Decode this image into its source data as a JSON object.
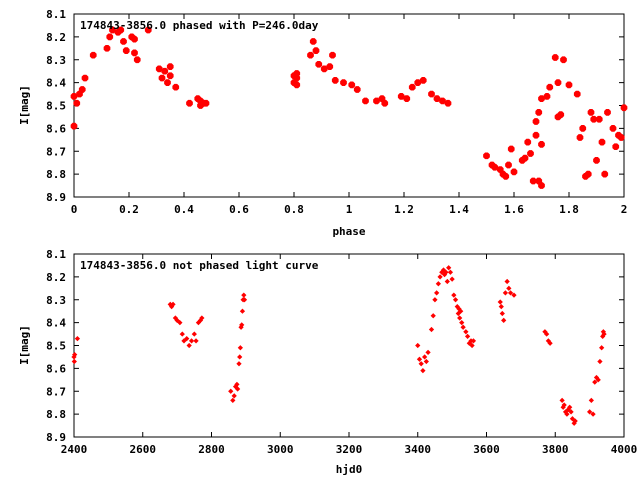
{
  "chart_data": [
    {
      "type": "scatter",
      "title": "174843-3856.0 phased with P=246.0day",
      "xlabel": "phase",
      "ylabel": "I[mag]",
      "xlim": [
        0,
        2
      ],
      "ylim": [
        8.9,
        8.1
      ],
      "y_inverted": true,
      "grid": false,
      "marker_color": "#ff0000",
      "marker_shape": "star",
      "xticks": [
        "0",
        "0.2",
        "0.4",
        "0.6",
        "0.8",
        "1",
        "1.2",
        "1.4",
        "1.6",
        "1.8",
        "2"
      ],
      "yticks": [
        "8.1",
        "8.2",
        "8.3",
        "8.4",
        "8.5",
        "8.6",
        "8.7",
        "8.8",
        "8.9"
      ],
      "series": [
        {
          "points": [
            [
              0.0,
              8.46
            ],
            [
              0.0,
              8.59
            ],
            [
              0.01,
              8.49
            ],
            [
              0.02,
              8.45
            ],
            [
              0.03,
              8.43
            ],
            [
              0.04,
              8.38
            ],
            [
              0.07,
              8.28
            ],
            [
              0.12,
              8.25
            ],
            [
              0.13,
              8.2
            ],
            [
              0.14,
              8.17
            ],
            [
              0.16,
              8.18
            ],
            [
              0.17,
              8.17
            ],
            [
              0.18,
              8.22
            ],
            [
              0.19,
              8.26
            ],
            [
              0.21,
              8.2
            ],
            [
              0.22,
              8.27
            ],
            [
              0.22,
              8.21
            ],
            [
              0.23,
              8.3
            ],
            [
              0.27,
              8.17
            ],
            [
              0.31,
              8.34
            ],
            [
              0.32,
              8.38
            ],
            [
              0.33,
              8.35
            ],
            [
              0.34,
              8.4
            ],
            [
              0.35,
              8.33
            ],
            [
              0.35,
              8.37
            ],
            [
              0.37,
              8.42
            ],
            [
              0.42,
              8.49
            ],
            [
              0.45,
              8.47
            ],
            [
              0.46,
              8.48
            ],
            [
              0.46,
              8.5
            ],
            [
              0.47,
              8.49
            ],
            [
              0.48,
              8.49
            ],
            [
              0.8,
              8.37
            ],
            [
              0.8,
              8.4
            ],
            [
              0.81,
              8.38
            ],
            [
              0.81,
              8.41
            ],
            [
              0.81,
              8.36
            ],
            [
              0.86,
              8.28
            ],
            [
              0.87,
              8.22
            ],
            [
              0.88,
              8.26
            ],
            [
              0.89,
              8.32
            ],
            [
              0.91,
              8.34
            ],
            [
              0.93,
              8.33
            ],
            [
              0.94,
              8.28
            ],
            [
              0.95,
              8.39
            ],
            [
              0.98,
              8.4
            ],
            [
              1.01,
              8.41
            ],
            [
              1.03,
              8.43
            ],
            [
              1.06,
              8.48
            ],
            [
              1.1,
              8.48
            ],
            [
              1.12,
              8.47
            ],
            [
              1.13,
              8.49
            ],
            [
              1.19,
              8.46
            ],
            [
              1.21,
              8.47
            ],
            [
              1.23,
              8.42
            ],
            [
              1.25,
              8.4
            ],
            [
              1.27,
              8.39
            ],
            [
              1.3,
              8.45
            ],
            [
              1.32,
              8.47
            ],
            [
              1.34,
              8.48
            ],
            [
              1.36,
              8.49
            ],
            [
              1.5,
              8.72
            ],
            [
              1.52,
              8.76
            ],
            [
              1.53,
              8.77
            ],
            [
              1.55,
              8.78
            ],
            [
              1.56,
              8.8
            ],
            [
              1.57,
              8.81
            ],
            [
              1.58,
              8.76
            ],
            [
              1.59,
              8.69
            ],
            [
              1.6,
              8.79
            ],
            [
              1.63,
              8.74
            ],
            [
              1.64,
              8.73
            ],
            [
              1.65,
              8.66
            ],
            [
              1.66,
              8.71
            ],
            [
              1.67,
              8.83
            ],
            [
              1.68,
              8.63
            ],
            [
              1.68,
              8.57
            ],
            [
              1.69,
              8.83
            ],
            [
              1.69,
              8.53
            ],
            [
              1.7,
              8.85
            ],
            [
              1.7,
              8.47
            ],
            [
              1.7,
              8.67
            ],
            [
              1.72,
              8.46
            ],
            [
              1.73,
              8.42
            ],
            [
              1.75,
              8.29
            ],
            [
              1.76,
              8.4
            ],
            [
              1.76,
              8.55
            ],
            [
              1.77,
              8.54
            ],
            [
              1.78,
              8.3
            ],
            [
              1.8,
              8.41
            ],
            [
              1.83,
              8.45
            ],
            [
              1.84,
              8.64
            ],
            [
              1.85,
              8.6
            ],
            [
              1.86,
              8.81
            ],
            [
              1.87,
              8.8
            ],
            [
              1.88,
              8.53
            ],
            [
              1.89,
              8.56
            ],
            [
              1.9,
              8.74
            ],
            [
              1.91,
              8.56
            ],
            [
              1.92,
              8.66
            ],
            [
              1.93,
              8.8
            ],
            [
              1.94,
              8.53
            ],
            [
              1.96,
              8.6
            ],
            [
              1.97,
              8.68
            ],
            [
              1.98,
              8.63
            ],
            [
              1.99,
              8.64
            ],
            [
              2.0,
              8.51
            ]
          ]
        }
      ]
    },
    {
      "type": "scatter",
      "title": "174843-3856.0 not phased light curve",
      "xlabel": "hjd0",
      "ylabel": "I[mag]",
      "xlim": [
        2400,
        4000
      ],
      "ylim": [
        8.9,
        8.1
      ],
      "y_inverted": true,
      "grid": false,
      "marker_color": "#ff0000",
      "marker_shape": "diamond",
      "xticks": [
        "2400",
        "2600",
        "2800",
        "3000",
        "3200",
        "3400",
        "3600",
        "3800",
        "4000"
      ],
      "yticks": [
        "8.1",
        "8.2",
        "8.3",
        "8.4",
        "8.5",
        "8.6",
        "8.7",
        "8.8",
        "8.9"
      ],
      "series": [
        {
          "points": [
            [
              2400,
              8.55
            ],
            [
              2401,
              8.57
            ],
            [
              2402,
              8.54
            ],
            [
              2410,
              8.47
            ],
            [
              2680,
              8.32
            ],
            [
              2684,
              8.33
            ],
            [
              2688,
              8.32
            ],
            [
              2695,
              8.38
            ],
            [
              2700,
              8.39
            ],
            [
              2708,
              8.4
            ],
            [
              2715,
              8.45
            ],
            [
              2720,
              8.48
            ],
            [
              2728,
              8.47
            ],
            [
              2735,
              8.5
            ],
            [
              2742,
              8.48
            ],
            [
              2750,
              8.45
            ],
            [
              2755,
              8.48
            ],
            [
              2762,
              8.4
            ],
            [
              2768,
              8.39
            ],
            [
              2772,
              8.38
            ],
            [
              2856,
              8.7
            ],
            [
              2862,
              8.74
            ],
            [
              2866,
              8.72
            ],
            [
              2870,
              8.68
            ],
            [
              2874,
              8.67
            ],
            [
              2876,
              8.69
            ],
            [
              2880,
              8.58
            ],
            [
              2882,
              8.55
            ],
            [
              2884,
              8.51
            ],
            [
              2886,
              8.42
            ],
            [
              2888,
              8.41
            ],
            [
              2890,
              8.35
            ],
            [
              2892,
              8.3
            ],
            [
              2894,
              8.28
            ],
            [
              2896,
              8.3
            ],
            [
              3400,
              8.5
            ],
            [
              3405,
              8.56
            ],
            [
              3410,
              8.58
            ],
            [
              3415,
              8.61
            ],
            [
              3420,
              8.55
            ],
            [
              3425,
              8.57
            ],
            [
              3430,
              8.53
            ],
            [
              3440,
              8.43
            ],
            [
              3445,
              8.37
            ],
            [
              3450,
              8.3
            ],
            [
              3455,
              8.27
            ],
            [
              3460,
              8.23
            ],
            [
              3465,
              8.2
            ],
            [
              3470,
              8.18
            ],
            [
              3475,
              8.17
            ],
            [
              3478,
              8.19
            ],
            [
              3482,
              8.18
            ],
            [
              3486,
              8.22
            ],
            [
              3490,
              8.16
            ],
            [
              3495,
              8.18
            ],
            [
              3500,
              8.21
            ],
            [
              3505,
              8.28
            ],
            [
              3510,
              8.3
            ],
            [
              3515,
              8.33
            ],
            [
              3518,
              8.36
            ],
            [
              3520,
              8.34
            ],
            [
              3522,
              8.38
            ],
            [
              3525,
              8.35
            ],
            [
              3528,
              8.4
            ],
            [
              3532,
              8.42
            ],
            [
              3540,
              8.44
            ],
            [
              3545,
              8.46
            ],
            [
              3550,
              8.49
            ],
            [
              3555,
              8.48
            ],
            [
              3558,
              8.5
            ],
            [
              3562,
              8.48
            ],
            [
              3640,
              8.31
            ],
            [
              3643,
              8.33
            ],
            [
              3646,
              8.36
            ],
            [
              3650,
              8.39
            ],
            [
              3655,
              8.27
            ],
            [
              3660,
              8.22
            ],
            [
              3665,
              8.25
            ],
            [
              3670,
              8.27
            ],
            [
              3680,
              8.28
            ],
            [
              3770,
              8.44
            ],
            [
              3775,
              8.45
            ],
            [
              3780,
              8.48
            ],
            [
              3785,
              8.49
            ],
            [
              3820,
              8.74
            ],
            [
              3823,
              8.77
            ],
            [
              3826,
              8.76
            ],
            [
              3830,
              8.79
            ],
            [
              3834,
              8.8
            ],
            [
              3838,
              8.78
            ],
            [
              3842,
              8.77
            ],
            [
              3846,
              8.79
            ],
            [
              3850,
              8.82
            ],
            [
              3855,
              8.84
            ],
            [
              3858,
              8.83
            ],
            [
              3900,
              8.79
            ],
            [
              3905,
              8.74
            ],
            [
              3910,
              8.8
            ],
            [
              3915,
              8.66
            ],
            [
              3920,
              8.64
            ],
            [
              3925,
              8.65
            ],
            [
              3930,
              8.57
            ],
            [
              3935,
              8.51
            ],
            [
              3938,
              8.46
            ],
            [
              3940,
              8.44
            ],
            [
              3942,
              8.45
            ]
          ]
        }
      ]
    }
  ]
}
